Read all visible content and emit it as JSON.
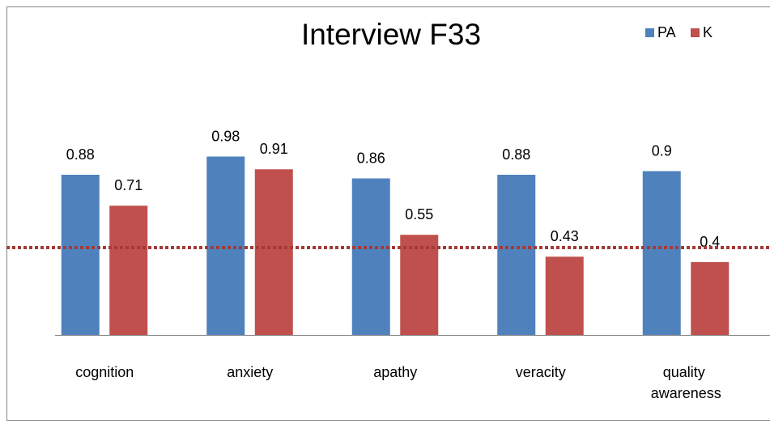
{
  "chart_data": {
    "type": "bar",
    "title": "Interview F33",
    "categories": [
      "cognition",
      "anxiety",
      "apathy",
      "veracity",
      "quality awareness"
    ],
    "series": [
      {
        "name": "PA",
        "color": "#4f81bd",
        "values": [
          0.88,
          0.98,
          0.86,
          0.88,
          0.9
        ]
      },
      {
        "name": "K",
        "color": "#c0504d",
        "values": [
          0.71,
          0.91,
          0.55,
          0.43,
          0.4
        ]
      }
    ],
    "reference_line": {
      "value": 0.48,
      "color": "#a33a36"
    },
    "ylim": [
      0,
      1.2
    ],
    "legend": "top-right"
  }
}
